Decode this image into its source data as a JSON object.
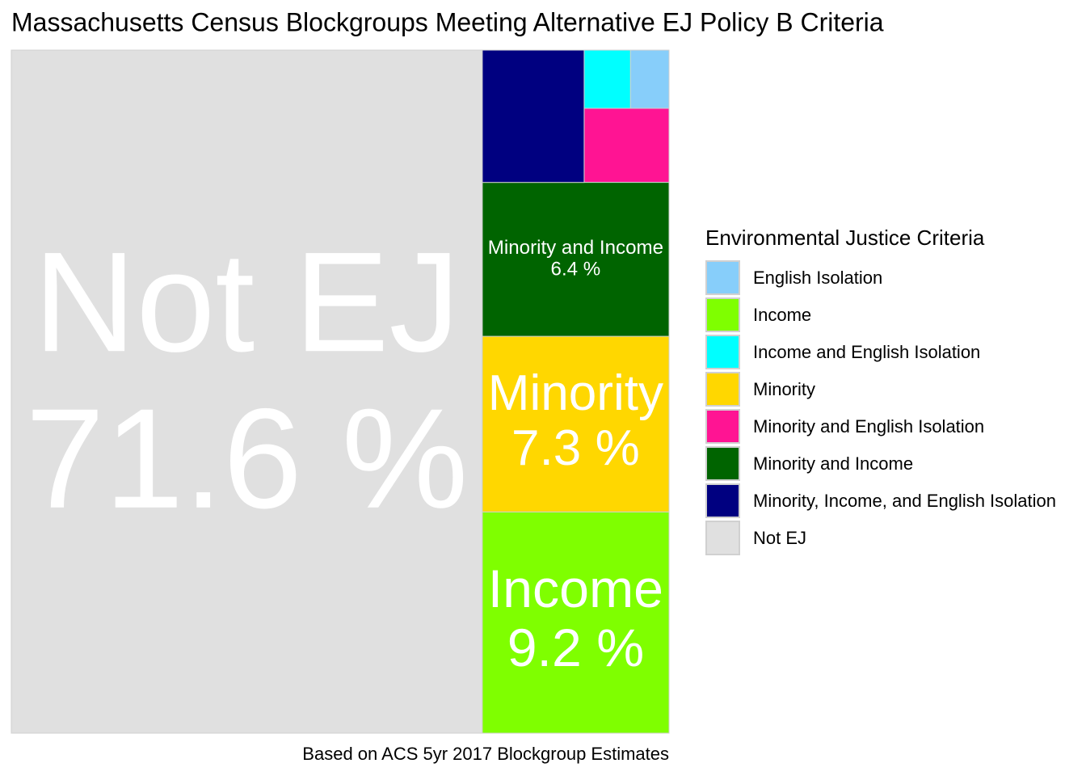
{
  "chart_data": {
    "type": "treemap",
    "title": "Massachusetts Census Blockgroups Meeting Alternative EJ Policy B Criteria",
    "caption": "Based on ACS 5yr 2017 Blockgroup Estimates",
    "legend_title": "Environmental Justice Criteria",
    "categories": [
      "English Isolation",
      "Income",
      "Income and English Isolation",
      "Minority",
      "Minority and English Isolation",
      "Minority and Income",
      "Minority, Income, and English Isolation",
      "Not EJ"
    ],
    "values": [
      0.5,
      9.2,
      0.6,
      7.3,
      1.4,
      6.4,
      3.0,
      71.6
    ],
    "value_labels": [
      null,
      "9.2 %",
      null,
      "7.3 %",
      null,
      "6.4 %",
      null,
      "71.6 %"
    ],
    "colors": [
      "#87cefa",
      "#7fff00",
      "#00ffff",
      "#ffd700",
      "#ff1493",
      "#006400",
      "#000080",
      "#e0e0e0"
    ]
  }
}
